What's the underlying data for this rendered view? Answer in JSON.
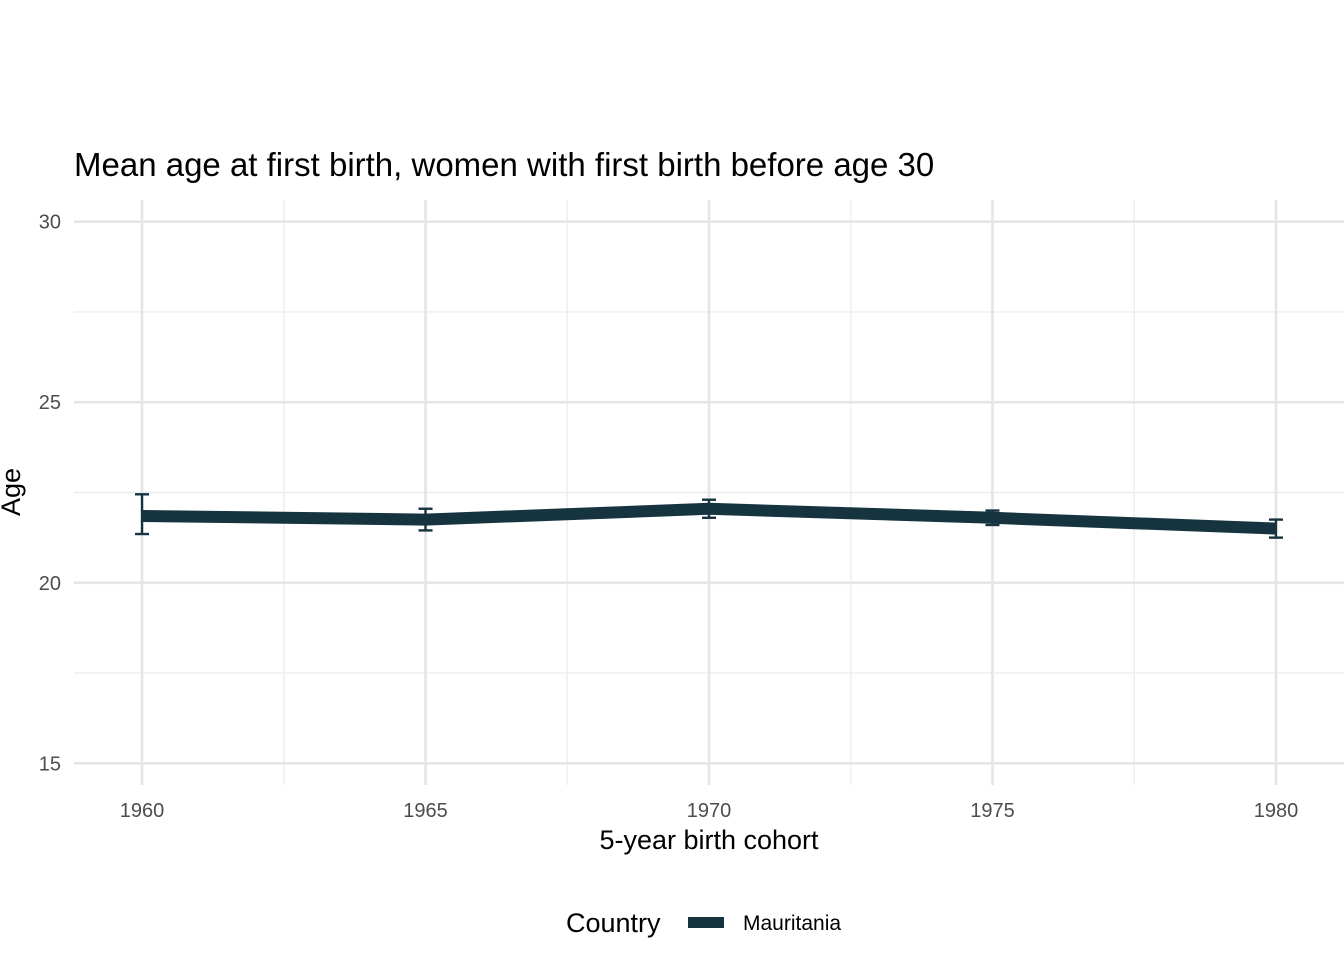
{
  "chart_data": {
    "type": "line",
    "title": "Mean age at first birth, women with first birth before age 30",
    "xlabel": "5-year birth cohort",
    "ylabel": "Age",
    "x": [
      1960,
      1965,
      1970,
      1975,
      1980
    ],
    "x_ticks": [
      "1960",
      "1965",
      "1970",
      "1975",
      "1980"
    ],
    "y_ticks": [
      "15",
      "20",
      "25",
      "30"
    ],
    "xlim": [
      1958.8,
      1981.2
    ],
    "ylim": [
      14.4,
      30.6
    ],
    "grid": true,
    "legend": {
      "title": "Country",
      "position": "bottom"
    },
    "series": [
      {
        "name": "Mauritania",
        "color": "#16343f",
        "values": [
          21.85,
          21.75,
          22.05,
          21.8,
          21.5
        ],
        "error_low": [
          21.35,
          21.45,
          21.8,
          21.6,
          21.25
        ],
        "error_high": [
          22.45,
          22.05,
          22.3,
          22.0,
          21.75
        ]
      }
    ]
  }
}
